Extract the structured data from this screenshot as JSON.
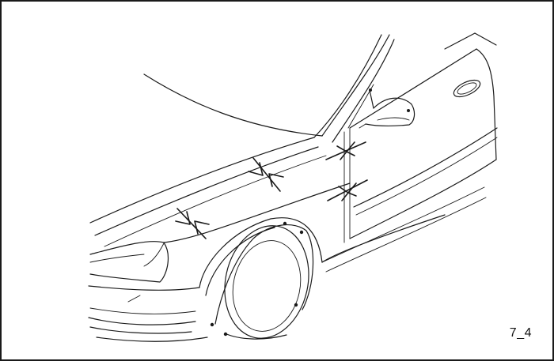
{
  "figure": {
    "label": "7_4"
  },
  "icons": {
    "vehicle": "car-front-fender-line-drawing",
    "gap_markers": "double-arrow-gap-indicator"
  },
  "colors": {
    "line": "#1a1a1a",
    "background": "#ffffff",
    "border": "#1a1a1a"
  }
}
